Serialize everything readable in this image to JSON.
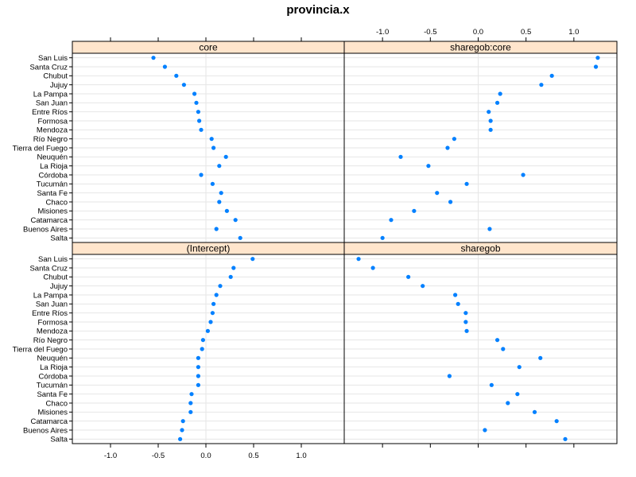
{
  "chart_data": {
    "type": "scatter",
    "title": "provincia.x",
    "categories": [
      "San Luis",
      "Santa Cruz",
      "Chubut",
      "Jujuy",
      "La Pampa",
      "San Juan",
      "Entre Ríos",
      "Formosa",
      "Mendoza",
      "Río Negro",
      "Tierra del Fuego",
      "Neuquén",
      "La Rioja",
      "Córdoba",
      "Tucumán",
      "Santa Fe",
      "Chaco",
      "Misiones",
      "Catamarca",
      "Buenos Aires",
      "Salta"
    ],
    "xlim": [
      -1.4,
      1.45
    ],
    "xticks": [
      -1.0,
      -0.5,
      0.0,
      0.5,
      1.0
    ],
    "xtick_labels": [
      "-1.0",
      "-0.5",
      "0.0",
      "0.5",
      "1.0"
    ],
    "grid": true,
    "point_color": "#0080ff",
    "strip_color": "#ffe5cc",
    "panels": [
      {
        "name": "core",
        "values": [
          -0.55,
          -0.43,
          -0.31,
          -0.23,
          -0.12,
          -0.1,
          -0.08,
          -0.07,
          -0.05,
          0.06,
          0.08,
          0.21,
          0.14,
          -0.05,
          0.07,
          0.16,
          0.14,
          0.22,
          0.31,
          0.11,
          0.36
        ]
      },
      {
        "name": "sharegob:core",
        "values": [
          1.25,
          1.23,
          0.77,
          0.66,
          0.23,
          0.2,
          0.11,
          0.13,
          0.13,
          -0.25,
          -0.32,
          -0.81,
          -0.52,
          0.47,
          -0.12,
          -0.43,
          -0.29,
          -0.67,
          -0.91,
          0.12,
          -1.0
        ]
      },
      {
        "name": "(Intercept)",
        "values": [
          0.49,
          0.29,
          0.26,
          0.15,
          0.11,
          0.08,
          0.07,
          0.05,
          0.02,
          -0.03,
          -0.04,
          -0.08,
          -0.08,
          -0.08,
          -0.08,
          -0.15,
          -0.16,
          -0.16,
          -0.24,
          -0.25,
          -0.27
        ]
      },
      {
        "name": "sharegob",
        "values": [
          -1.25,
          -1.1,
          -0.73,
          -0.58,
          -0.24,
          -0.21,
          -0.13,
          -0.13,
          -0.12,
          0.2,
          0.26,
          0.65,
          0.43,
          -0.3,
          0.14,
          0.41,
          0.31,
          0.59,
          0.82,
          0.07,
          0.91
        ]
      }
    ]
  }
}
